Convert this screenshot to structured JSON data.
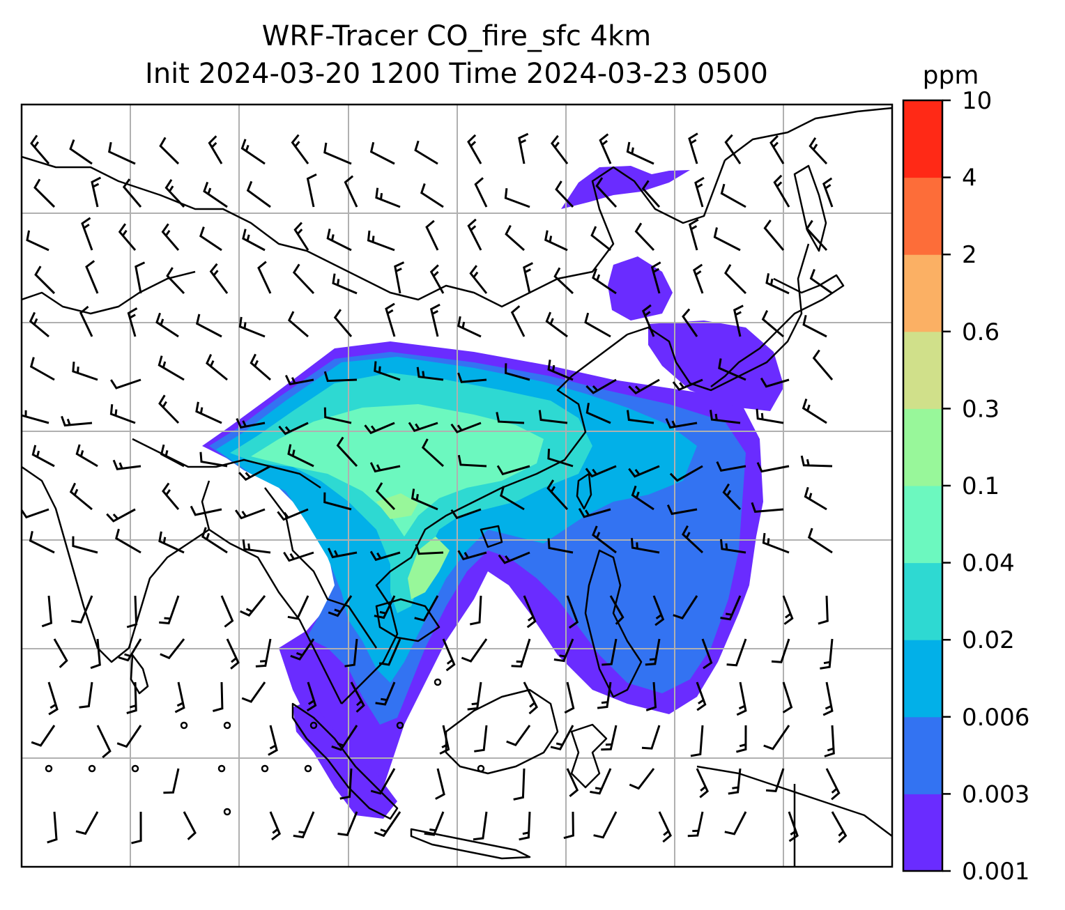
{
  "title": {
    "line1": "WRF-Tracer CO_fire_sfc 4km",
    "line2": "Init 2024-03-20 1200 Time 2024-03-23 0500"
  },
  "colorbar": {
    "unit": "ppm",
    "levels": [
      "0.001",
      "0.003",
      "0.006",
      "0.02",
      "0.04",
      "0.1",
      "0.3",
      "0.6",
      "2",
      "4",
      "10"
    ],
    "colors": [
      "#6a2cff",
      "#3373f2",
      "#02b0e8",
      "#2ed9d2",
      "#6cf8bf",
      "#98f79a",
      "#d0e08a",
      "#fbb064",
      "#fd6d39",
      "#ff2916"
    ]
  },
  "map": {
    "grid": true,
    "wind_barbs": true,
    "background": "#ffffff",
    "coastline_color": "#000000",
    "grid_color": "#b0b0b0"
  }
}
